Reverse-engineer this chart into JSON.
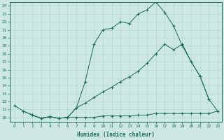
{
  "xlabel": "Humidex (Indice chaleur)",
  "bg_color": "#cde8e4",
  "grid_color": "#b0d8d0",
  "line_color": "#1a6b5a",
  "xlim": [
    -0.5,
    23.5
  ],
  "ylim": [
    9.5,
    24.5
  ],
  "xticks": [
    0,
    1,
    2,
    3,
    4,
    5,
    6,
    7,
    8,
    9,
    10,
    11,
    12,
    13,
    14,
    15,
    16,
    17,
    18,
    19,
    20,
    21,
    22,
    23
  ],
  "yticks": [
    10,
    11,
    12,
    13,
    14,
    15,
    16,
    17,
    18,
    19,
    20,
    21,
    22,
    23,
    24
  ],
  "line1_x": [
    0,
    1,
    2,
    3,
    4,
    5,
    6,
    7,
    8,
    9,
    10,
    11,
    12,
    13,
    14,
    15,
    16,
    17,
    18,
    19,
    20,
    21,
    22
  ],
  "line1_y": [
    11.5,
    10.8,
    10.3,
    9.9,
    10.1,
    9.9,
    10.0,
    11.2,
    14.5,
    19.2,
    21.0,
    21.2,
    22.0,
    21.8,
    23.0,
    23.5,
    24.5,
    23.2,
    21.5,
    19.0,
    17.0,
    15.2,
    12.3
  ],
  "line2_x": [
    2,
    3,
    4,
    5,
    6,
    7,
    8,
    9,
    10,
    11,
    12,
    13,
    14,
    15,
    16,
    17,
    18,
    19,
    20,
    21,
    22,
    23
  ],
  "line2_y": [
    10.3,
    9.9,
    10.1,
    9.9,
    10.0,
    11.2,
    11.8,
    12.5,
    13.2,
    13.8,
    14.5,
    15.1,
    15.8,
    16.8,
    18.0,
    19.2,
    18.5,
    19.2,
    17.0,
    15.2,
    12.3,
    10.8
  ],
  "line3_x": [
    1,
    2,
    3,
    4,
    5,
    6,
    7,
    8,
    9,
    10,
    11,
    12,
    13,
    14,
    15,
    16,
    17,
    18,
    19,
    20,
    21,
    22,
    23
  ],
  "line3_y": [
    10.8,
    10.3,
    9.9,
    10.1,
    9.9,
    10.0,
    10.0,
    10.0,
    10.0,
    10.2,
    10.2,
    10.2,
    10.2,
    10.3,
    10.3,
    10.5,
    10.5,
    10.5,
    10.5,
    10.5,
    10.5,
    10.5,
    10.8
  ]
}
